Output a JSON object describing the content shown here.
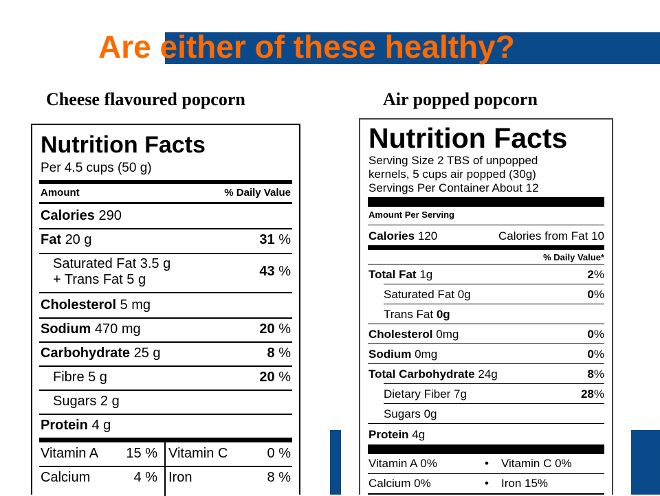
{
  "title": "Are either of these healthy?",
  "captions": {
    "left": "Cheese flavoured popcorn",
    "right": "Air popped popcorn"
  },
  "label1": {
    "heading": "Nutrition Facts",
    "per": "Per 4.5 cups (50 g)",
    "amount_header": "Amount",
    "dv_header": "% Daily Value",
    "calories": {
      "name": "Calories",
      "amount": "290"
    },
    "fat": {
      "name": "Fat",
      "amount": "20 g",
      "dv": "31",
      "pct": "%"
    },
    "sat_fat": {
      "line1": "Saturated Fat 3.5 g",
      "line2": "+ Trans Fat 5 g",
      "dv": "43",
      "pct": "%"
    },
    "cholesterol": {
      "name": "Cholesterol",
      "amount": "5 mg"
    },
    "sodium": {
      "name": "Sodium",
      "amount": "470 mg",
      "dv": "20",
      "pct": "%"
    },
    "carbohydrate": {
      "name": "Carbohydrate",
      "amount": "25 g",
      "dv": "8",
      "pct": "%"
    },
    "fibre": {
      "text": "Fibre 5 g",
      "dv": "20",
      "pct": "%"
    },
    "sugars": {
      "text": "Sugars 2 g"
    },
    "protein": {
      "name": "Protein",
      "amount": "4 g"
    },
    "vitamin_a": {
      "name": "Vitamin A",
      "value": "15 %"
    },
    "vitamin_c": {
      "name": "Vitamin C",
      "value": "0 %"
    },
    "calcium": {
      "name": "Calcium",
      "value": "4 %"
    },
    "iron": {
      "name": "Iron",
      "value": "8 %"
    }
  },
  "label2": {
    "heading": "Nutrition Facts",
    "serving_lines": [
      "Serving Size 2 TBS of unpopped",
      "kernels, 5 cups air popped (30g)",
      "Servings Per Container About 12"
    ],
    "amount_per_serving": "Amount Per Serving",
    "calories": {
      "name": "Calories",
      "amount": "120",
      "from_fat": "Calories from Fat 10"
    },
    "dv_header": "% Daily Value*",
    "total_fat": {
      "name": "Total Fat",
      "amount": "1g",
      "dv": "2",
      "pct": "%"
    },
    "sat_fat": {
      "text": "Saturated Fat 0g",
      "dv": "0",
      "pct": "%"
    },
    "trans_fat": {
      "text": "Trans Fat",
      "amount": "0g"
    },
    "cholesterol": {
      "name": "Cholesterol",
      "amount": "0mg",
      "dv": "0",
      "pct": "%"
    },
    "sodium": {
      "name": "Sodium",
      "amount": "0mg",
      "dv": "0",
      "pct": "%"
    },
    "total_carb": {
      "name": "Total Carbohydrate",
      "amount": "24g",
      "dv": "8",
      "pct": "%"
    },
    "fiber": {
      "text": "Dietary Fiber 7g",
      "dv": "28",
      "pct": "%"
    },
    "sugars": {
      "text": "Sugars 0g"
    },
    "protein": {
      "name": "Protein",
      "amount": "4g"
    },
    "vitamin_a": "Vitamin A 0%",
    "vitamin_c": "Vitamin C 0%",
    "calcium": "Calcium 0%",
    "iron": "Iron 15%",
    "bullet": "•"
  },
  "colors": {
    "title": "#ff6a00",
    "band": "#0a4a8a"
  }
}
